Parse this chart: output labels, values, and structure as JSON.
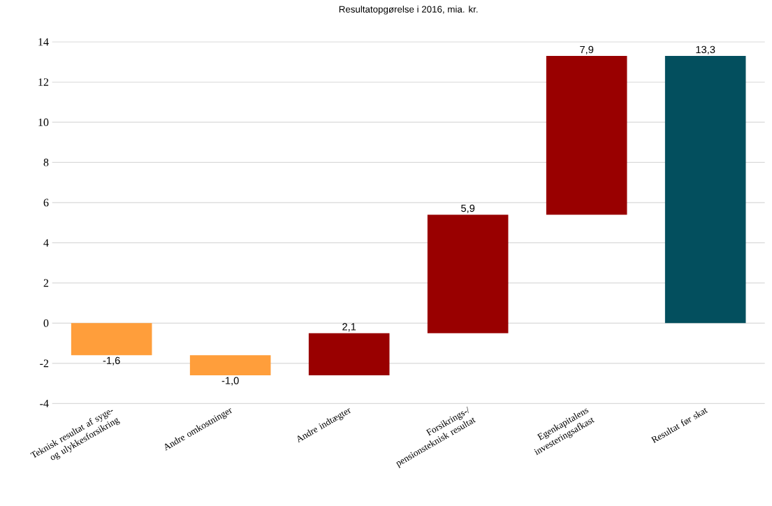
{
  "chart_data": {
    "type": "bar",
    "title": "Resultatopgørelse i 2016, mia. kr.",
    "categories": [
      "Teknisk resultat af syge- og ulykkesforsikring",
      "Andre omkostninger",
      "Andre indtægter",
      "Forsikrings-/ pensionsteknisk resultat",
      "Egenkapitalens investeringsafkast",
      "Resultat før skat"
    ],
    "values": [
      -1.6,
      -1.0,
      2.1,
      5.9,
      7.9,
      13.3
    ],
    "base": [
      0,
      -1.6,
      -2.6,
      -0.5,
      5.4,
      0
    ],
    "colors": [
      "#ff9e3b",
      "#ff9e3b",
      "#990000",
      "#990000",
      "#990000",
      "#034f5e"
    ],
    "value_labels": [
      "-1,6",
      "-1,0",
      "2,1",
      "5,9",
      "7,9",
      "13,3"
    ],
    "ylim": [
      -4,
      14
    ],
    "yticks": [
      -4,
      -2,
      0,
      2,
      4,
      6,
      8,
      10,
      12,
      14
    ],
    "grid": "y"
  }
}
